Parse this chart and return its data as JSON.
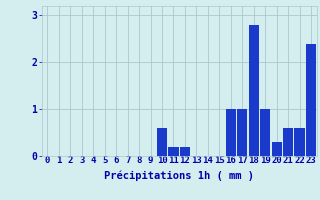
{
  "hours": [
    0,
    1,
    2,
    3,
    4,
    5,
    6,
    7,
    8,
    9,
    10,
    11,
    12,
    13,
    14,
    15,
    16,
    17,
    18,
    19,
    20,
    21,
    22,
    23
  ],
  "values": [
    0,
    0,
    0,
    0,
    0,
    0,
    0,
    0,
    0,
    0,
    0.6,
    0.2,
    0.2,
    0,
    0,
    0,
    1.0,
    1.0,
    2.8,
    1.0,
    0.3,
    0.6,
    0.6,
    2.4
  ],
  "bar_color": "#1a3acc",
  "background_color": "#d4eef0",
  "grid_color": "#aac8cc",
  "axis_color": "#0000aa",
  "xlabel": "Précipitations 1h ( mm )",
  "ylim": [
    0,
    3.2
  ],
  "yticks": [
    0,
    1,
    2,
    3
  ],
  "xlabel_fontsize": 7.5,
  "tick_fontsize": 6.5,
  "bar_width": 0.9
}
